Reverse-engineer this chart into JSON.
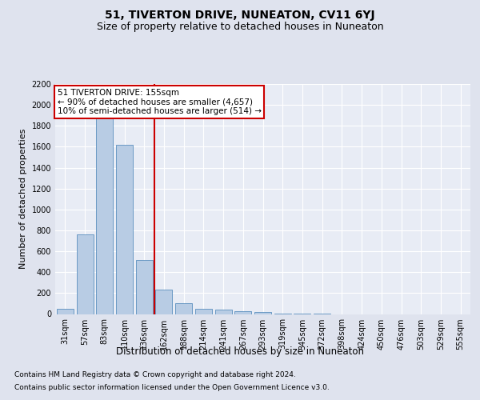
{
  "title": "51, TIVERTON DRIVE, NUNEATON, CV11 6YJ",
  "subtitle": "Size of property relative to detached houses in Nuneaton",
  "xlabel": "Distribution of detached houses by size in Nuneaton",
  "ylabel": "Number of detached properties",
  "categories": [
    "31sqm",
    "57sqm",
    "83sqm",
    "110sqm",
    "136sqm",
    "162sqm",
    "188sqm",
    "214sqm",
    "241sqm",
    "267sqm",
    "293sqm",
    "319sqm",
    "345sqm",
    "372sqm",
    "398sqm",
    "424sqm",
    "450sqm",
    "476sqm",
    "503sqm",
    "529sqm",
    "555sqm"
  ],
  "values": [
    50,
    760,
    1870,
    1620,
    520,
    230,
    100,
    50,
    45,
    30,
    20,
    5,
    2,
    1,
    0,
    0,
    0,
    0,
    0,
    0,
    0
  ],
  "bar_color": "#b8cce4",
  "bar_edge_color": "#5b8fbe",
  "annotation_line1": "51 TIVERTON DRIVE: 155sqm",
  "annotation_line2": "← 90% of detached houses are smaller (4,657)",
  "annotation_line3": "10% of semi-detached houses are larger (514) →",
  "annotation_box_color": "#ffffff",
  "annotation_box_edge": "#cc0000",
  "vline_color": "#cc0000",
  "vline_x": 4.5,
  "ylim": [
    0,
    2200
  ],
  "yticks": [
    0,
    200,
    400,
    600,
    800,
    1000,
    1200,
    1400,
    1600,
    1800,
    2000,
    2200
  ],
  "footer_line1": "Contains HM Land Registry data © Crown copyright and database right 2024.",
  "footer_line2": "Contains public sector information licensed under the Open Government Licence v3.0.",
  "bg_color": "#dfe3ee",
  "plot_bg_color": "#e8ecf5",
  "title_fontsize": 10,
  "subtitle_fontsize": 9,
  "ylabel_fontsize": 8,
  "tick_fontsize": 7,
  "xlabel_fontsize": 8.5,
  "footer_fontsize": 6.5,
  "ann_fontsize": 7.5
}
